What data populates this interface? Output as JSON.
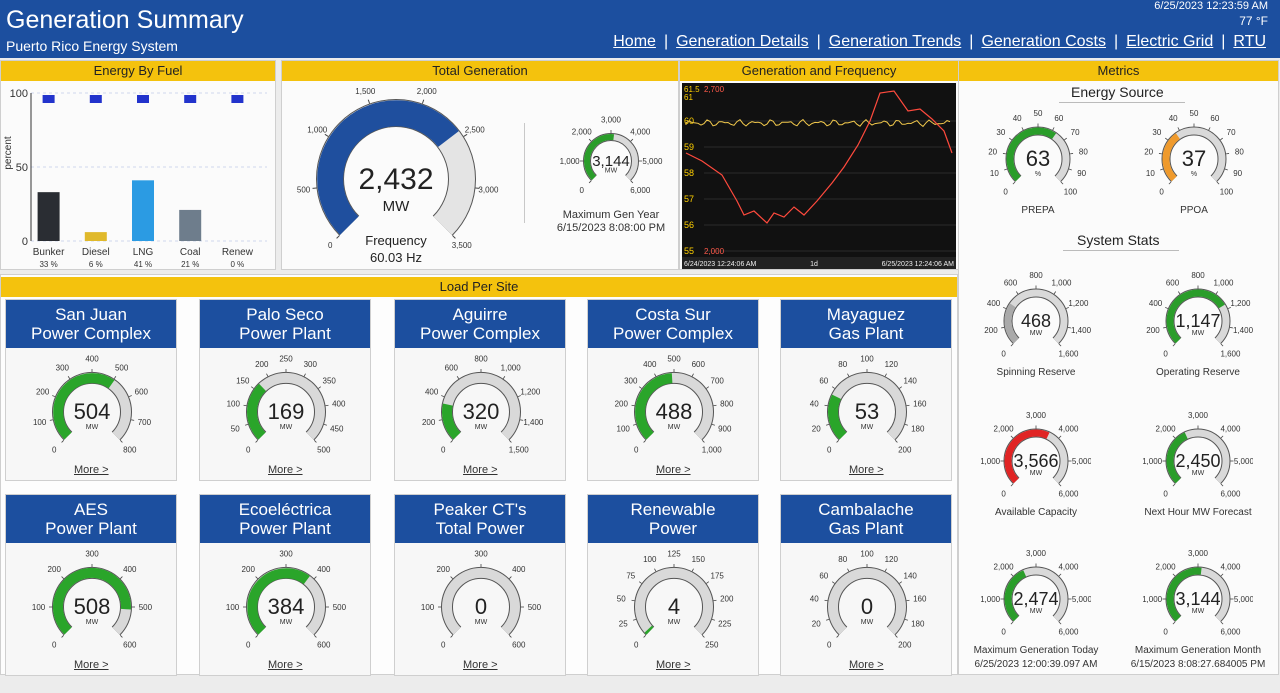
{
  "header": {
    "title": "Generation Summary",
    "subtitle": "Puerto Rico Energy System",
    "timestamp": "6/25/2023 12:23:59 AM",
    "temperature": "77 °F",
    "nav": [
      "Home",
      "Generation Details",
      "Generation Trends",
      "Generation Costs",
      "Electric Grid",
      "RTU"
    ]
  },
  "panels": {
    "energy_by_fuel": "Energy By Fuel",
    "total_generation": "Total Generation",
    "gen_freq": "Generation and Frequency",
    "metrics": "Metrics",
    "load_per_site": "Load Per Site",
    "energy_source": "Energy Source",
    "system_stats": "System Stats"
  },
  "chart_data": {
    "type": "bar",
    "ylabel": "percent",
    "ylim": [
      0,
      100
    ],
    "yticks": [
      "100",
      "50",
      "0"
    ],
    "categories": [
      "Bunker",
      "Diesel",
      "LNG",
      "Coal",
      "Renew"
    ],
    "values": [
      33,
      6,
      41,
      21,
      0
    ],
    "value_labels": [
      "33 %",
      "6 %",
      "41 %",
      "21 %",
      "0 %"
    ],
    "bar_colors": [
      "#2a2d33",
      "#e0b92b",
      "#2b9be3",
      "#6e7d8c",
      "#888888"
    ],
    "marker_color": "#2233cc"
  },
  "total_gen": {
    "value": "2,432",
    "unit": "MW",
    "freq_label": "Frequency",
    "freq_value": "60.03 Hz",
    "ticks": [
      "0",
      "500",
      "1,000",
      "1,500",
      "2,000",
      "2,500",
      "3,000",
      "3,500"
    ],
    "fraction": 0.695
  },
  "max_year": {
    "value": "3,144",
    "unit": "MW",
    "ticks": [
      "0",
      "1,000",
      "2,000",
      "3,000",
      "4,000",
      "5,000",
      "6,000"
    ],
    "fraction": 0.524,
    "caption": "Maximum Gen Year",
    "date": "6/15/2023 8:08:00 PM"
  },
  "freq_chart": {
    "top_labels": [
      "61.5",
      "61",
      "2,700"
    ],
    "y_labels": [
      "60",
      "59",
      "58",
      "57",
      "56",
      "55"
    ],
    "bottom_val": "2,000",
    "x_labels": [
      "6/24/2023 12:24:06 AM",
      "1d",
      "6/25/2023 12:24:06 AM"
    ]
  },
  "sites": [
    {
      "name1": "San Juan",
      "name2": "Power Complex",
      "value": "504",
      "fraction": 0.63,
      "ticks": [
        "0",
        "100",
        "200",
        "300",
        "400",
        "500",
        "600",
        "700",
        "800"
      ]
    },
    {
      "name1": "Palo Seco",
      "name2": "Power Plant",
      "value": "169",
      "fraction": 0.338,
      "ticks": [
        "0",
        "50",
        "100",
        "150",
        "200",
        "250",
        "300",
        "350",
        "400",
        "450",
        "500"
      ]
    },
    {
      "name1": "Aguirre",
      "name2": "Power Complex",
      "value": "320",
      "fraction": 0.213,
      "ticks": [
        "0",
        "200",
        "400",
        "600",
        "800",
        "1,000",
        "1,200",
        "1,400",
        "1,500"
      ]
    },
    {
      "name1": "Costa Sur",
      "name2": "Power Complex",
      "value": "488",
      "fraction": 0.488,
      "ticks": [
        "0",
        "100",
        "200",
        "300",
        "400",
        "500",
        "600",
        "700",
        "800",
        "900",
        "1,000"
      ]
    },
    {
      "name1": "Mayaguez",
      "name2": "Gas Plant",
      "value": "53",
      "fraction": 0.265,
      "ticks": [
        "0",
        "20",
        "40",
        "60",
        "80",
        "100",
        "120",
        "140",
        "160",
        "180",
        "200"
      ]
    },
    {
      "name1": "AES",
      "name2": "Power Plant",
      "value": "508",
      "fraction": 0.847,
      "ticks": [
        "0",
        "100",
        "200",
        "300",
        "400",
        "500",
        "600"
      ]
    },
    {
      "name1": "Ecoeléctrica",
      "name2": "Power Plant",
      "value": "384",
      "fraction": 0.64,
      "ticks": [
        "0",
        "100",
        "200",
        "300",
        "400",
        "500",
        "600"
      ]
    },
    {
      "name1": "Peaker CT's",
      "name2": "Total Power",
      "value": "0",
      "fraction": 0,
      "ticks": [
        "0",
        "100",
        "200",
        "300",
        "400",
        "500",
        "600"
      ]
    },
    {
      "name1": "Renewable",
      "name2": "Power",
      "value": "4",
      "fraction": 0.016,
      "ticks": [
        "0",
        "25",
        "50",
        "75",
        "100",
        "125",
        "150",
        "175",
        "200",
        "225",
        "250"
      ]
    },
    {
      "name1": "Cambalache",
      "name2": "Gas Plant",
      "value": "0",
      "fraction": 0,
      "ticks": [
        "0",
        "20",
        "40",
        "60",
        "80",
        "100",
        "120",
        "140",
        "160",
        "180",
        "200"
      ]
    }
  ],
  "more_label": "More >",
  "unit_mw": "MW",
  "energy_source": [
    {
      "label": "PREPA",
      "value": "63",
      "unit": "%",
      "fraction": 0.63,
      "color": "#2a9d2a",
      "ticks": [
        "0",
        "10",
        "20",
        "30",
        "40",
        "50",
        "60",
        "70",
        "80",
        "90",
        "100"
      ]
    },
    {
      "label": "PPOA",
      "value": "37",
      "unit": "%",
      "fraction": 0.37,
      "color": "#ef9a2c",
      "ticks": [
        "0",
        "10",
        "20",
        "30",
        "40",
        "50",
        "60",
        "70",
        "80",
        "90",
        "100"
      ]
    }
  ],
  "system_stats": [
    {
      "label": "Spinning Reserve",
      "value": "468",
      "fraction": 0.293,
      "color": "#aaaaaa",
      "ticks": [
        "0",
        "200",
        "400",
        "600",
        "800",
        "1,000",
        "1,200",
        "1,400",
        "1,600"
      ]
    },
    {
      "label": "Operating Reserve",
      "value": "1,147",
      "fraction": 0.717,
      "color": "#2a9d2a",
      "ticks": [
        "0",
        "200",
        "400",
        "600",
        "800",
        "1,000",
        "1,200",
        "1,400",
        "1,600"
      ]
    },
    {
      "label": "Available Capacity",
      "value": "3,566",
      "fraction": 0.594,
      "color": "#e02424",
      "ticks": [
        "0",
        "1,000",
        "2,000",
        "3,000",
        "4,000",
        "5,000",
        "6,000"
      ]
    },
    {
      "label": "Next Hour MW Forecast",
      "value": "2,450",
      "fraction": 0.408,
      "color": "#2a9d2a",
      "ticks": [
        "0",
        "1,000",
        "2,000",
        "3,000",
        "4,000",
        "5,000",
        "6,000"
      ]
    },
    {
      "label": "Maximum Generation Today",
      "value": "2,474",
      "fraction": 0.412,
      "color": "#2a9d2a",
      "ticks": [
        "0",
        "1,000",
        "2,000",
        "3,000",
        "4,000",
        "5,000",
        "6,000"
      ],
      "date": "6/25/2023 12:00:39.097 AM"
    },
    {
      "label": "Maximum Generation Month",
      "value": "3,144",
      "fraction": 0.524,
      "color": "#2a9d2a",
      "ticks": [
        "0",
        "1,000",
        "2,000",
        "3,000",
        "4,000",
        "5,000",
        "6,000"
      ],
      "date": "6/15/2023 8:08:27.684005 PM"
    }
  ]
}
